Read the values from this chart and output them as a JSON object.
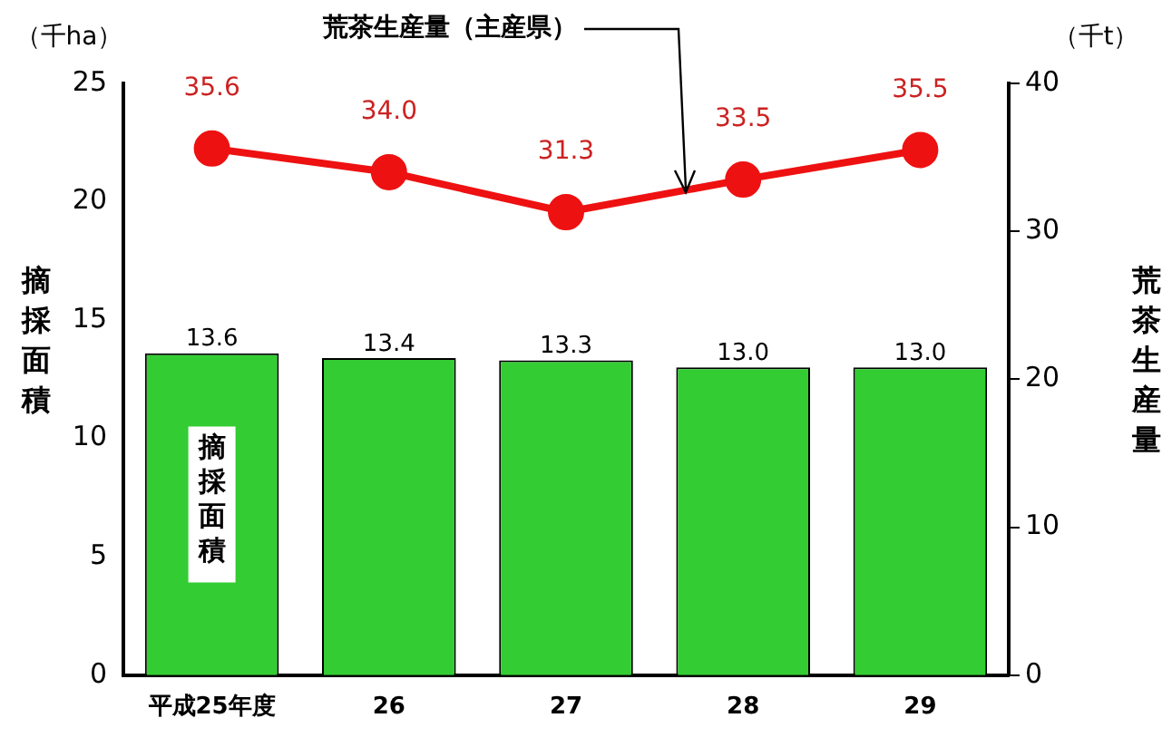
{
  "chart_data": {
    "type": "bar",
    "categories": [
      "平成25年度",
      "26",
      "27",
      "28",
      "29"
    ],
    "series": [
      {
        "name": "摘採面積",
        "color": "#33cc33",
        "values": [
          13.6,
          13.4,
          13.3,
          13.0,
          13.0
        ],
        "value_labels": [
          "13.6",
          "13.4",
          "13.3",
          "13.0",
          "13.0"
        ]
      },
      {
        "name": "荒茶生産量（主産県）",
        "type": "line",
        "axis": "y2",
        "color": "#ee1111",
        "values": [
          35.6,
          34.0,
          31.3,
          33.5,
          35.5
        ],
        "value_labels": [
          "35.6",
          "34.0",
          "31.3",
          "33.5",
          "35.5"
        ]
      }
    ],
    "ylabel": "摘採面積",
    "y2label": "荒茶生産量",
    "annotations": [
      "（千ha）",
      "（千t）"
    ],
    "ylim": [
      0,
      25
    ],
    "yticks": [
      0,
      5,
      10,
      15,
      20,
      25
    ],
    "y2lim": [
      0,
      40
    ],
    "y2ticks": [
      0,
      10,
      20,
      30,
      40
    ],
    "grid": false,
    "legend": false,
    "marker": "circle"
  }
}
